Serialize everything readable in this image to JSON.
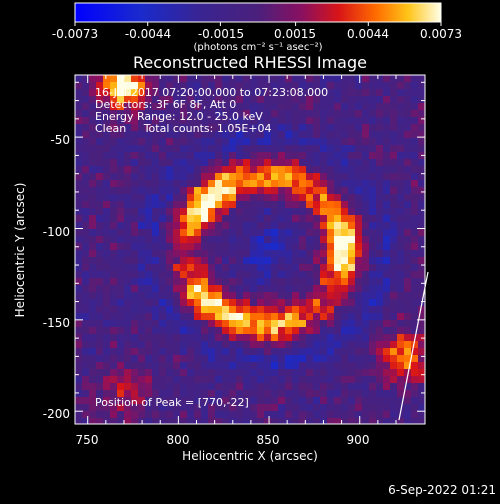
{
  "chart_data": {
    "type": "heatmap",
    "title": "Reconstructed RHESSI Image",
    "xlabel": "Heliocentric X (arcsec)",
    "ylabel": "Heliocentric Y (arcsec)",
    "xlim": [
      743,
      936
    ],
    "ylim": [
      -207,
      -16
    ],
    "x_ticks": [
      750,
      800,
      850,
      900
    ],
    "x_tick_labels": [
      "750",
      "800",
      "850",
      "900"
    ],
    "y_ticks": [
      -50,
      -100,
      -150,
      -200
    ],
    "y_tick_labels": [
      "-50",
      "-100",
      "-150",
      "-200"
    ],
    "colorbar": {
      "range": [
        -0.0073,
        0.0073
      ],
      "ticks": [
        -0.0073,
        -0.0044,
        -0.0015,
        0.0015,
        0.0044,
        0.0073
      ],
      "tick_labels": [
        "-0.0073",
        "-0.0044",
        "-0.0015",
        "0.0015",
        "0.0044",
        "0.0073"
      ],
      "units_label": "(photons cm⁻² s⁻¹ asec⁻²)"
    },
    "info_lines": [
      "16-Jul-2017 07:20:00.000 to 07:23:08.000",
      "Detectors: 3F 6F 8F, Att 0",
      "Energy Range: 12.0 - 25.0 keV",
      "Clean     Total counts: 1.05E+04"
    ],
    "peak_label": "Position of Peak = [770,-22]",
    "features": {
      "ring_center": [
        848,
        -112
      ],
      "ring_radius_arcsec": 43,
      "peak_position": [
        770,
        -22
      ]
    },
    "colors": {
      "background": "#000000",
      "foreground": "#ffffff",
      "negative": "#1010ff",
      "mid": "#5a2d86",
      "positive_high": "#ffffe0"
    }
  },
  "footer": {
    "timestamp": "6-Sep-2022 01:21"
  }
}
